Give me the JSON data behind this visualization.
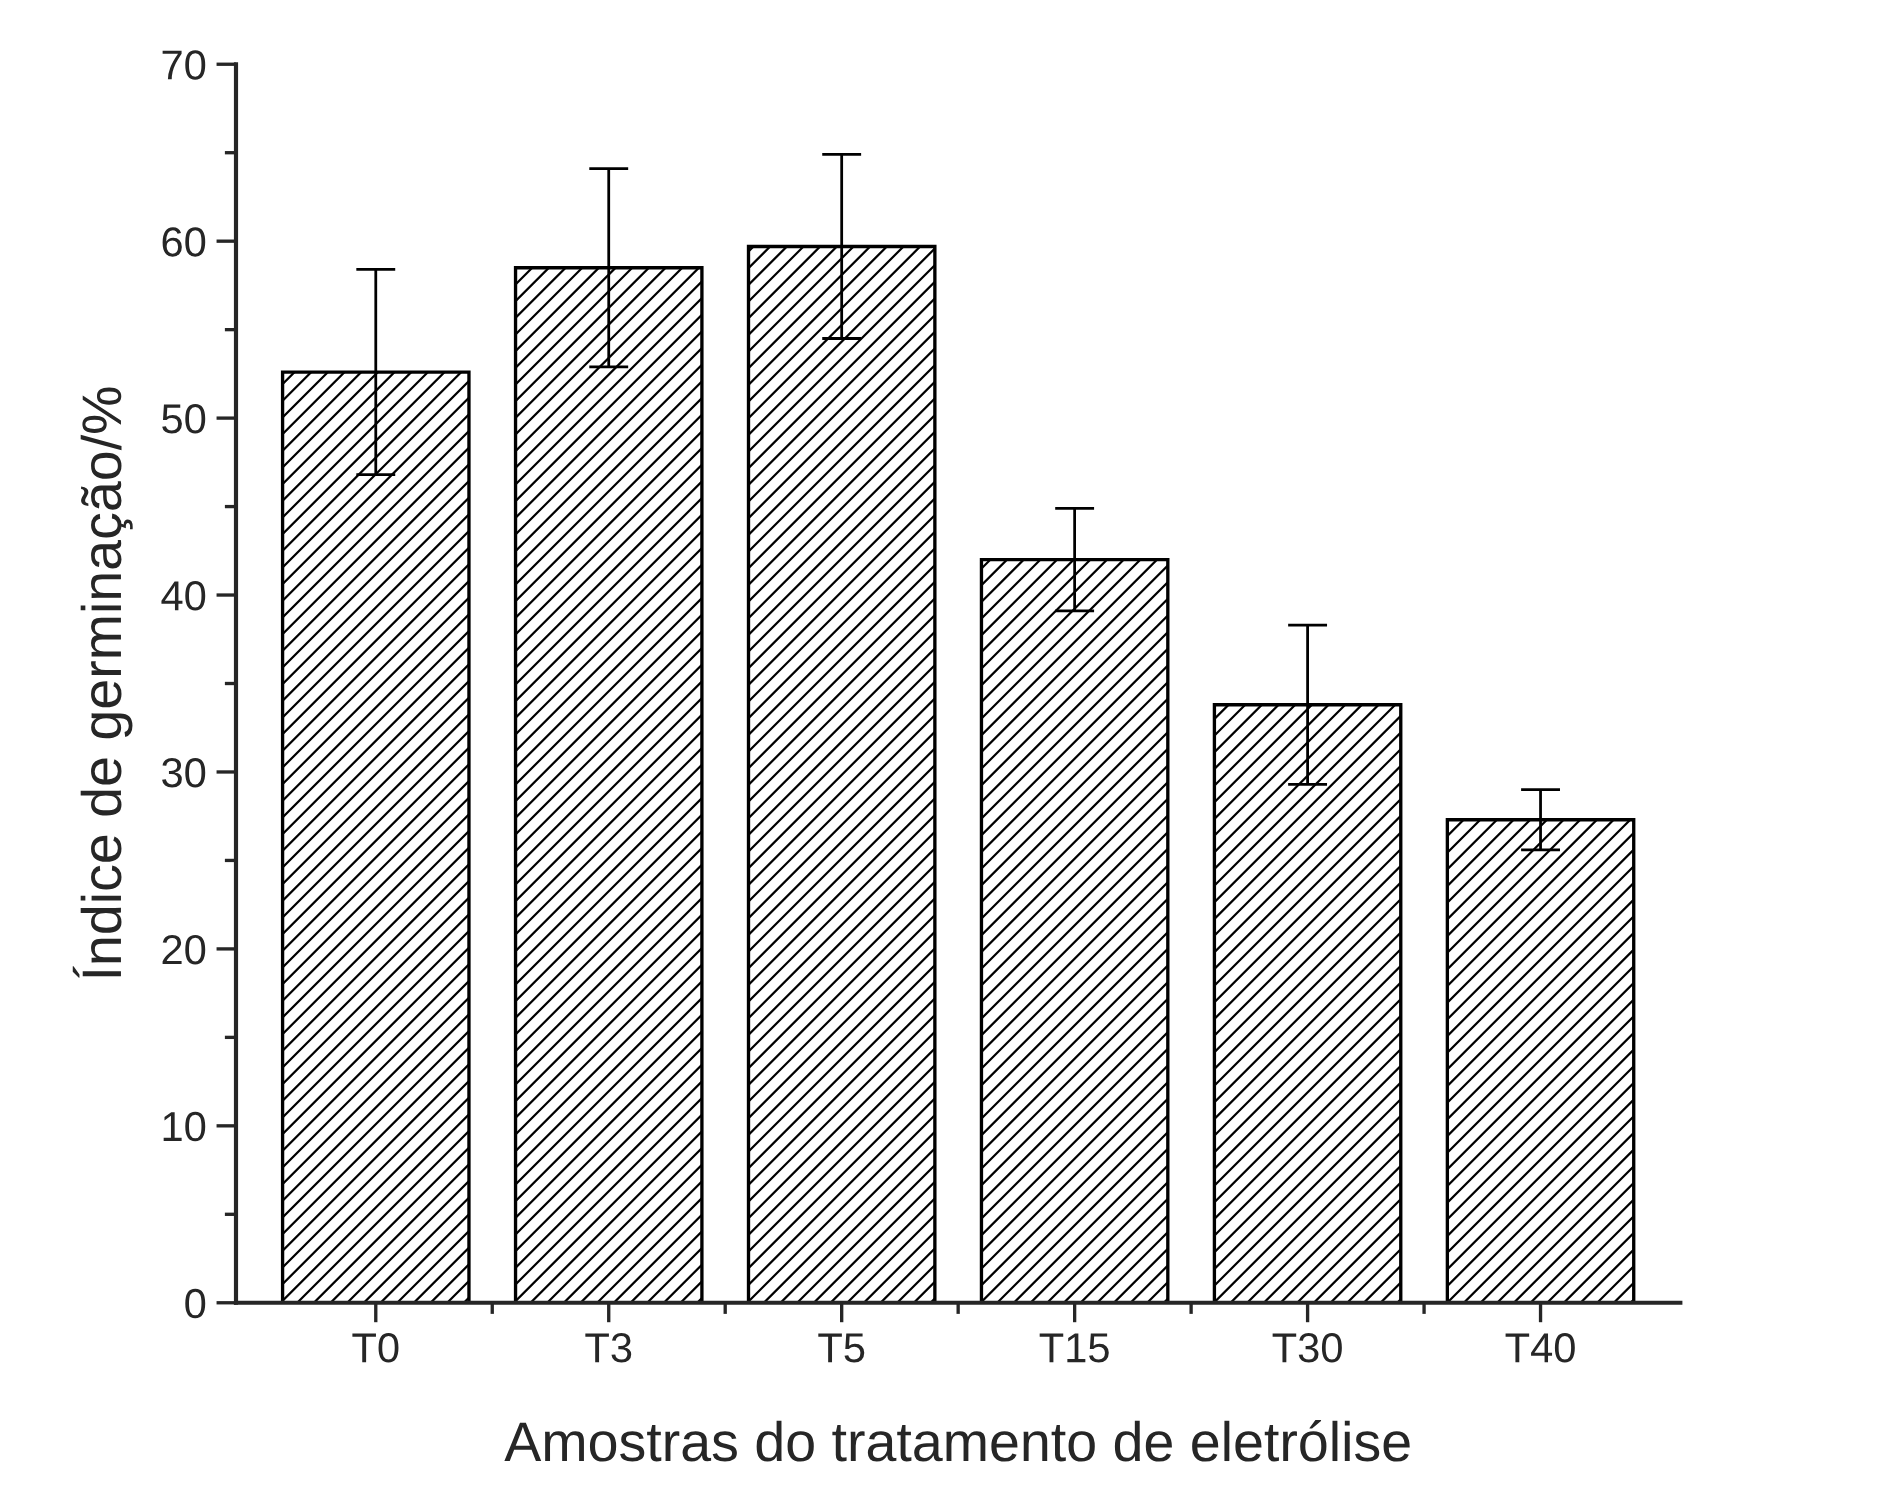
{
  "chart_data": {
    "type": "bar",
    "xlabel": "Amostras do tratamento de eletrólise",
    "ylabel": "Índice de germinação/%",
    "categories": [
      "T0",
      "T3",
      "T5",
      "T15",
      "T30",
      "T40"
    ],
    "values": [
      52.6,
      58.5,
      59.7,
      42.0,
      33.8,
      27.3
    ],
    "errors": [
      5.8,
      5.6,
      5.2,
      2.9,
      4.5,
      1.7
    ],
    "color": "#000000",
    "ylim": [
      0,
      70
    ],
    "yticks": [
      0,
      {
        "value": 5,
        "label": null
      },
      10,
      {
        "value": 15,
        "label": null
      },
      20,
      {
        "value": 25,
        "label": null
      },
      30,
      {
        "value": 35,
        "label": null
      },
      40,
      {
        "value": 45,
        "label": null
      },
      50,
      {
        "value": 55,
        "label": null
      },
      60,
      {
        "value": 65,
        "label": null
      },
      70
    ],
    "grid": false
  }
}
